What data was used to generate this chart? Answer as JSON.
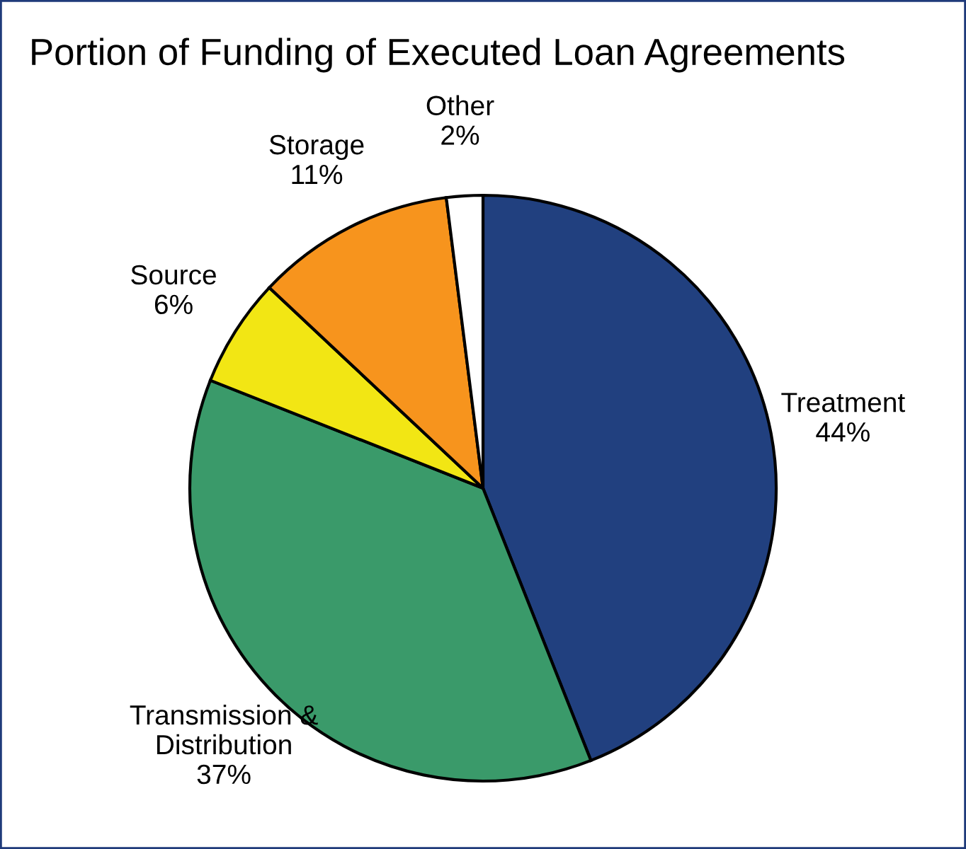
{
  "chart_data": {
    "type": "pie",
    "title": "Portion of Funding of Executed Loan Agreements",
    "categories": [
      "Treatment",
      "Transmission &\nDistribution",
      "Source",
      "Storage",
      "Other"
    ],
    "values": [
      44,
      37,
      6,
      11,
      2
    ],
    "value_labels": [
      "44%",
      "37%",
      "6%",
      "11%",
      "2%"
    ],
    "colors": [
      "#21407f",
      "#3a9a6a",
      "#f2e614",
      "#f7941d",
      "#ffffff"
    ],
    "legend": false
  }
}
